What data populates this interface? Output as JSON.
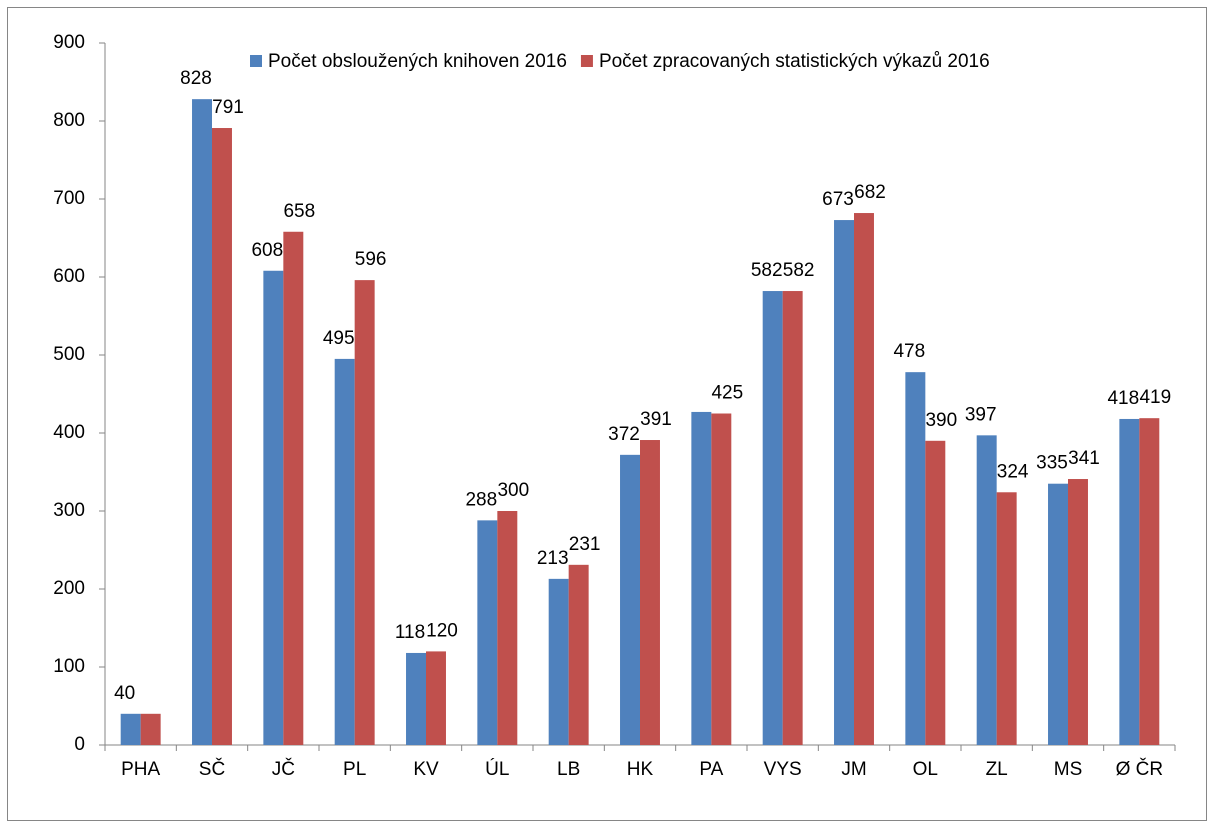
{
  "chart_data": {
    "type": "bar",
    "categories": [
      "PHA",
      "SČ",
      "JČ",
      "PL",
      "KV",
      "ÚL",
      "LB",
      "HK",
      "PA",
      "VYS",
      "JM",
      "OL",
      "ZL",
      "MS",
      "Ø ČR"
    ],
    "series": [
      {
        "name": "Počet obsloužených knihoven 2016",
        "color": "#4f81bd",
        "values": [
          40,
          828,
          608,
          495,
          118,
          288,
          213,
          372,
          427,
          582,
          673,
          478,
          397,
          335,
          418
        ],
        "value_labels": [
          "40",
          "828",
          "608",
          "495",
          "118",
          "288",
          "213",
          "372",
          null,
          "582",
          "673",
          "478",
          "397",
          "335",
          "418"
        ]
      },
      {
        "name": "Počet zpracovaných statistických výkazů 2016",
        "color": "#c0504d",
        "values": [
          40,
          791,
          658,
          596,
          120,
          300,
          231,
          391,
          425,
          582,
          682,
          390,
          324,
          341,
          419
        ],
        "value_labels": [
          null,
          "791",
          "658",
          "596",
          "120",
          "300",
          "231",
          "391",
          "425",
          "582",
          "682",
          "390",
          "324",
          "341",
          "419"
        ]
      }
    ],
    "ylim": [
      0,
      900
    ],
    "yticks": [
      0,
      100,
      200,
      300,
      400,
      500,
      600,
      700,
      800,
      900
    ],
    "grid": false,
    "legend": "top"
  }
}
